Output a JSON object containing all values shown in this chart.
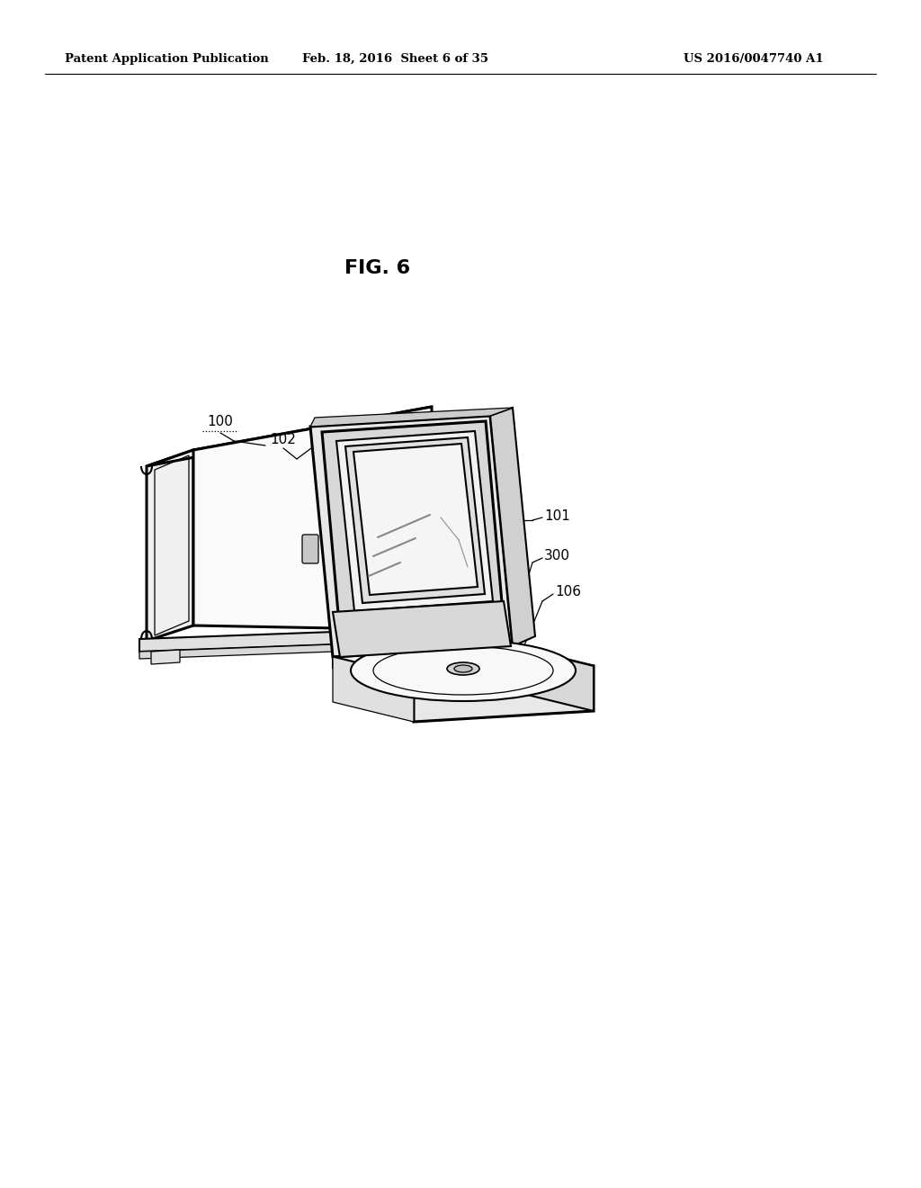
{
  "background_color": "#ffffff",
  "header_left": "Patent Application Publication",
  "header_center": "Feb. 18, 2016  Sheet 6 of 35",
  "header_right": "US 2016/0047740 A1",
  "fig_label": "FIG. 6",
  "line_color": "#000000",
  "lw_thick": 2.2,
  "lw_med": 1.5,
  "lw_thin": 0.9
}
